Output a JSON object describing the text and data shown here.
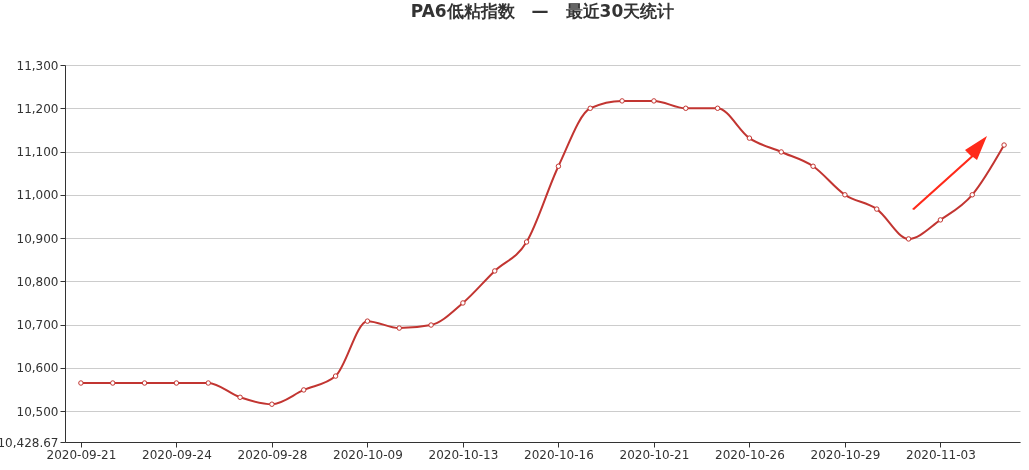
{
  "chart_data": {
    "type": "line",
    "title": "PA6低粘指数　—　最近30天统计",
    "categories": [
      "2020-09-21",
      null,
      null,
      "2020-09-24",
      null,
      null,
      "2020-09-28",
      null,
      null,
      "2020-10-09",
      null,
      null,
      "2020-10-13",
      null,
      null,
      "2020-10-16",
      null,
      null,
      "2020-10-21",
      null,
      null,
      "2020-10-26",
      null,
      null,
      "2020-10-29",
      null,
      null,
      "2020-11-03",
      null,
      null
    ],
    "series": [
      {
        "color": "#c23531",
        "values": [
          10565,
          10565,
          10565,
          10565,
          10565,
          10532,
          10516,
          10549,
          10581,
          10708,
          10692,
          10699,
          10750,
          10824,
          10891,
          11066,
          11200,
          11217,
          11217,
          11200,
          11200,
          11131,
          11099,
          11066,
          11000,
          10967,
          10898,
          10942,
          11000,
          11115
        ]
      }
    ],
    "ylim": [
      10428.67,
      11300
    ],
    "yticks": [
      {
        "value": 10428.67,
        "label": "10,428.67"
      },
      {
        "value": 10500,
        "label": "10,500"
      },
      {
        "value": 10600,
        "label": "10,600"
      },
      {
        "value": 10700,
        "label": "10,700"
      },
      {
        "value": 10800,
        "label": "10,800"
      },
      {
        "value": 10900,
        "label": "10,900"
      },
      {
        "value": 11000,
        "label": "11,000"
      },
      {
        "value": 11100,
        "label": "11,100"
      },
      {
        "value": 11200,
        "label": "11,200"
      },
      {
        "value": 11300,
        "label": "11,300"
      }
    ],
    "grid": "y",
    "marker": "circle",
    "line_style": "solid",
    "legend": false
  }
}
